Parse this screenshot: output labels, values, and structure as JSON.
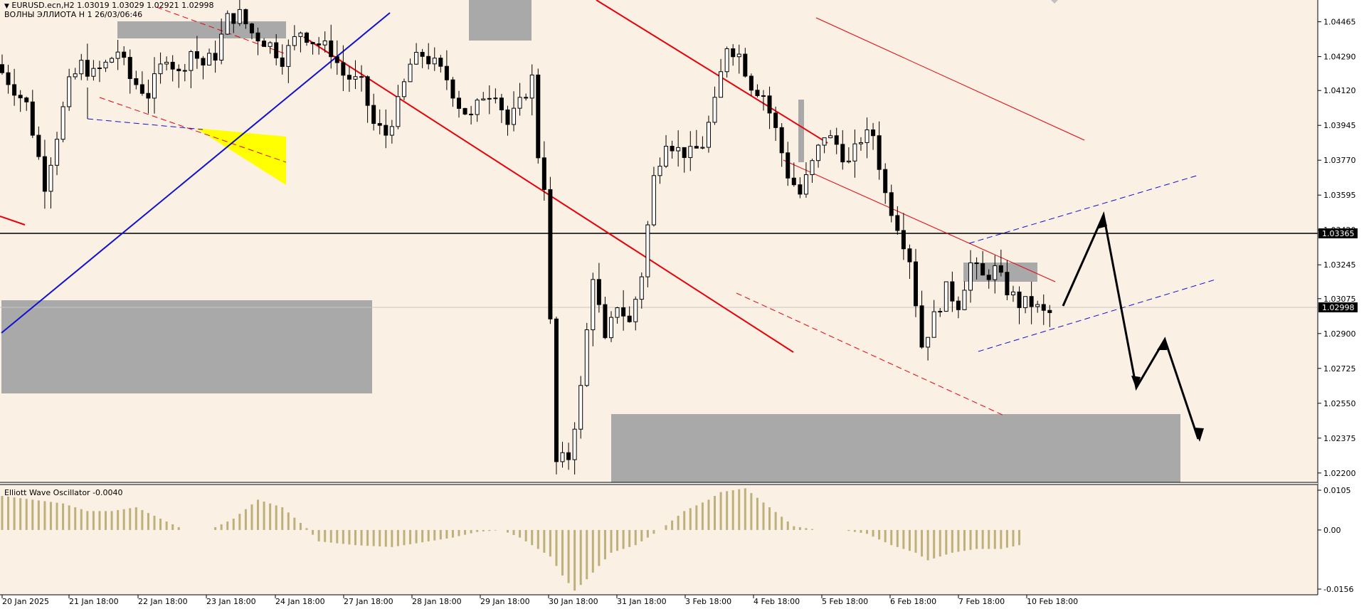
{
  "header": {
    "symbol_line": "EURUSD.ecn,H2  1.03019 1.03029 1.02921 1.02998",
    "indicator_line": "ВОЛНЫ ЭЛЛИОТА H 1 26/03/06:46"
  },
  "oscillator": {
    "label": "Elliott Wave Oscillator -0.0040"
  },
  "colors": {
    "background": "#fbf0e4",
    "candle_body_bull": "#ffffff",
    "candle_body_bear": "#000000",
    "zone_fill": "#a9a9a9",
    "channel_red": "#e8000b",
    "channel_blue": "#1010d0",
    "highlight_yellow": "#ffff00",
    "oscillator_bars": "#bdb07a",
    "arrow": "#000000"
  },
  "chart_data": {
    "type": "candlestick",
    "symbol": "EURUSD.ecn",
    "timeframe": "H2",
    "ylim": [
      1.0216,
      1.0456
    ],
    "y_ticks": [
      "1.04465",
      "1.04290",
      "1.04120",
      "1.03945",
      "1.03770",
      "1.03595",
      "1.03420",
      "1.03245",
      "1.03075",
      "1.02900",
      "1.02725",
      "1.02550",
      "1.02375",
      "1.02200"
    ],
    "x_ticks": [
      "20 Jan 2025",
      "21 Jan 18:00",
      "22 Jan 18:00",
      "23 Jan 18:00",
      "24 Jan 18:00",
      "27 Jan 18:00",
      "28 Jan 18:00",
      "29 Jan 18:00",
      "30 Jan 18:00",
      "31 Jan 18:00",
      "3 Feb 18:00",
      "4 Feb 18:00",
      "5 Feb 18:00",
      "6 Feb 18:00",
      "7 Feb 18:00",
      "10 Feb 18:00"
    ],
    "current_price_label": "1.02998",
    "level_label": "1.03365",
    "level_price": 1.03365,
    "current_price": 1.02998,
    "bar_count": 150,
    "anchors": [
      [
        0,
        1.0425
      ],
      [
        5,
        1.0405
      ],
      [
        8,
        1.0365
      ],
      [
        10,
        1.039
      ],
      [
        12,
        1.0415
      ],
      [
        14,
        1.0425
      ],
      [
        16,
        1.042
      ],
      [
        18,
        1.0425
      ],
      [
        20,
        1.0432
      ],
      [
        22,
        1.0418
      ],
      [
        25,
        1.041
      ],
      [
        28,
        1.043
      ],
      [
        30,
        1.042
      ],
      [
        32,
        1.0432
      ],
      [
        34,
        1.0425
      ],
      [
        36,
        1.043
      ],
      [
        38,
        1.0448
      ],
      [
        40,
        1.045
      ],
      [
        42,
        1.0441
      ],
      [
        45,
        1.0435
      ],
      [
        47,
        1.0428
      ],
      [
        50,
        1.0442
      ],
      [
        52,
        1.0437
      ],
      [
        55,
        1.0432
      ],
      [
        57,
        1.042
      ],
      [
        60,
        1.0415
      ],
      [
        62,
        1.0395
      ],
      [
        64,
        1.039
      ],
      [
        66,
        1.0405
      ],
      [
        68,
        1.0425
      ],
      [
        70,
        1.043
      ],
      [
        72,
        1.0425
      ],
      [
        74,
        1.0418
      ],
      [
        76,
        1.0405
      ],
      [
        78,
        1.0398
      ],
      [
        80,
        1.041
      ],
      [
        82,
        1.0412
      ],
      [
        84,
        1.0395
      ],
      [
        86,
        1.0405
      ],
      [
        88,
        1.0418
      ],
      [
        89,
        1.038
      ],
      [
        90,
        1.0365
      ],
      [
        92,
        1.0225
      ],
      [
        94,
        1.0228
      ],
      [
        96,
        1.0262
      ],
      [
        98,
        1.032
      ],
      [
        100,
        1.0285
      ],
      [
        102,
        1.0305
      ],
      [
        104,
        1.0295
      ],
      [
        106,
        1.032
      ],
      [
        108,
        1.0368
      ],
      [
        110,
        1.0388
      ],
      [
        112,
        1.0382
      ],
      [
        114,
        1.038
      ],
      [
        116,
        1.0385
      ],
      [
        118,
        1.0405
      ],
      [
        120,
        1.0435
      ],
      [
        122,
        1.043
      ],
      [
        124,
        1.0415
      ],
      [
        126,
        1.041
      ],
      [
        128,
        1.0392
      ],
      [
        130,
        1.037
      ],
      [
        132,
        1.036
      ],
      [
        134,
        1.0375
      ],
      [
        136,
        1.039
      ],
      [
        138,
        1.0385
      ],
      [
        140,
        1.0375
      ],
      [
        142,
        1.0388
      ],
      [
        144,
        1.039
      ],
      [
        146,
        1.036
      ],
      [
        148,
        1.0345
      ],
      [
        150,
        1.0328
      ],
      [
        152,
        1.0284
      ],
      [
        154,
        1.0298
      ],
      [
        156,
        1.0312
      ],
      [
        158,
        1.0305
      ],
      [
        160,
        1.0325
      ],
      [
        162,
        1.0318
      ],
      [
        164,
        1.0322
      ],
      [
        166,
        1.0312
      ],
      [
        168,
        1.0305
      ],
      [
        170,
        1.0305
      ],
      [
        172,
        1.03
      ]
    ],
    "oscillator": {
      "ylim": [
        -0.0156,
        0.0105
      ],
      "y_ticks": [
        "0.0105",
        "0.00",
        "-0.0156"
      ],
      "last_value": -0.004,
      "anchors": [
        [
          0,
          0.009
        ],
        [
          10,
          0.007
        ],
        [
          14,
          0.005
        ],
        [
          18,
          0.005
        ],
        [
          22,
          0.006
        ],
        [
          26,
          0.003
        ],
        [
          30,
          0.0
        ],
        [
          34,
          0.0
        ],
        [
          38,
          0.003
        ],
        [
          42,
          0.008
        ],
        [
          46,
          0.006
        ],
        [
          50,
          0.0005
        ],
        [
          52,
          -0.003
        ],
        [
          58,
          -0.004
        ],
        [
          64,
          -0.0045
        ],
        [
          70,
          -0.003
        ],
        [
          74,
          -0.002
        ],
        [
          78,
          -0.0005
        ],
        [
          82,
          0.0
        ],
        [
          85,
          -0.002
        ],
        [
          90,
          -0.007
        ],
        [
          92,
          -0.012
        ],
        [
          94,
          -0.016
        ],
        [
          96,
          -0.013
        ],
        [
          100,
          -0.006
        ],
        [
          104,
          -0.004
        ],
        [
          108,
          0.0
        ],
        [
          112,
          0.005
        ],
        [
          116,
          0.008
        ],
        [
          118,
          0.01
        ],
        [
          122,
          0.011
        ],
        [
          126,
          0.006
        ],
        [
          130,
          0.001
        ],
        [
          134,
          0.0
        ],
        [
          138,
          0.0
        ],
        [
          142,
          -0.001
        ],
        [
          146,
          -0.004
        ],
        [
          150,
          -0.006
        ],
        [
          152,
          -0.008
        ],
        [
          156,
          -0.006
        ],
        [
          160,
          -0.005
        ],
        [
          164,
          -0.005
        ],
        [
          167,
          -0.004
        ]
      ]
    }
  }
}
